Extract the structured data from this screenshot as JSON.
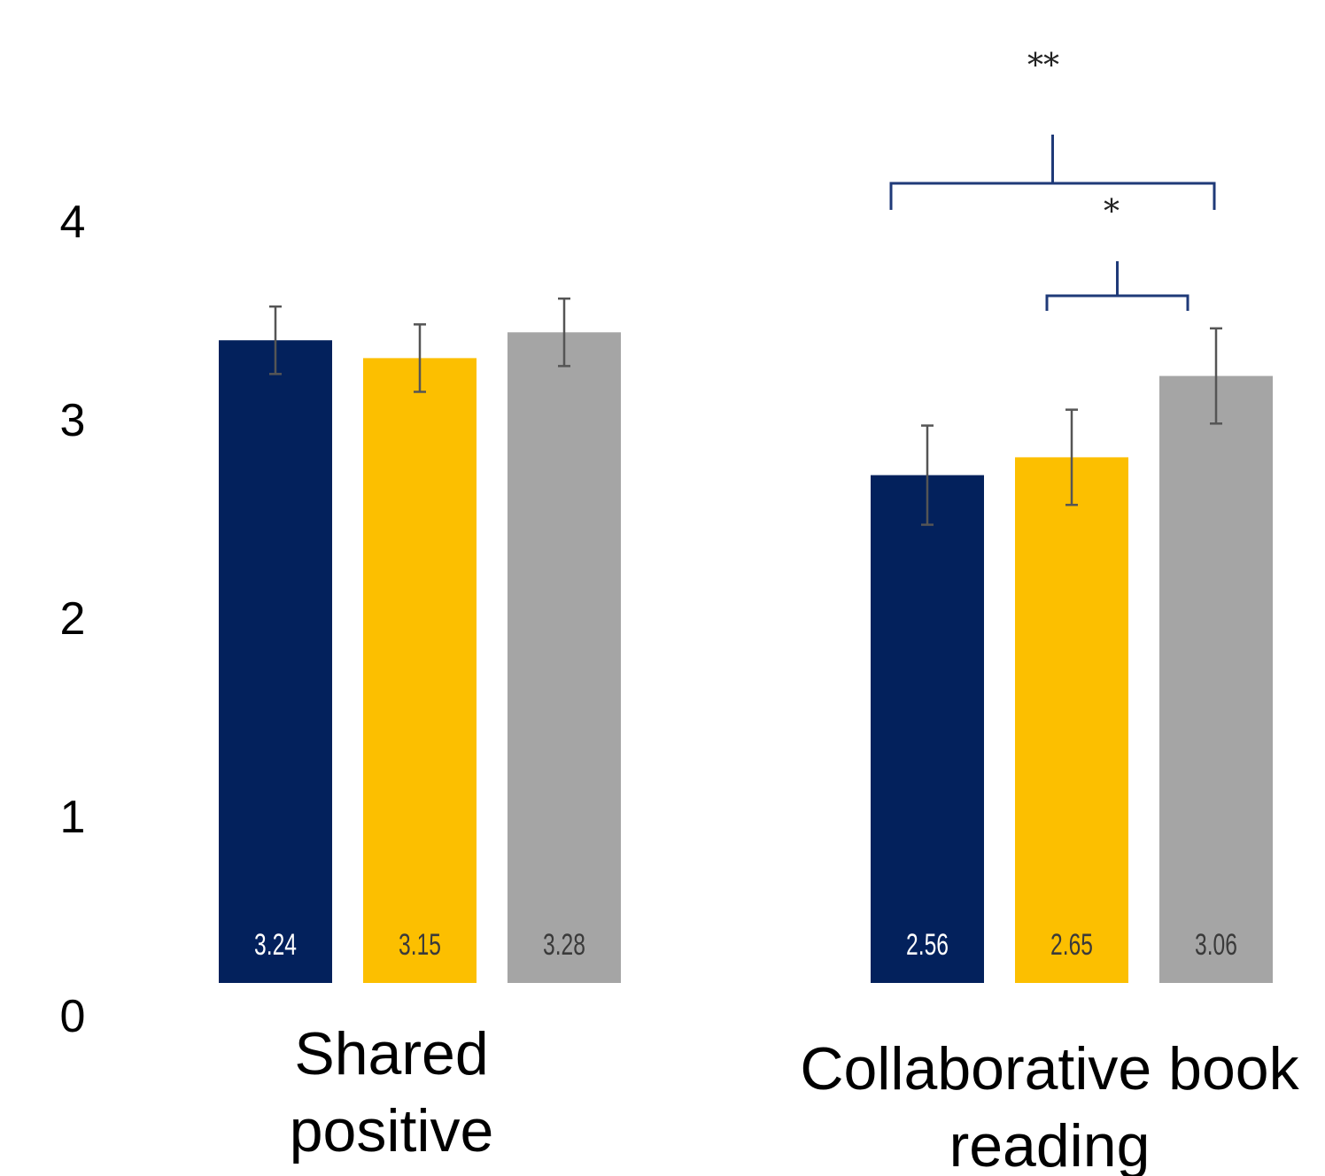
{
  "chart_data": {
    "type": "bar",
    "categories": [
      [
        "Shared",
        "positive"
      ],
      [
        "Collaborative book",
        "reading"
      ]
    ],
    "series": [
      {
        "values": [
          3.24,
          2.56
        ],
        "value_labels": [
          "3.24",
          "2.56"
        ],
        "error": [
          0.17,
          0.25
        ],
        "color": "#03215c",
        "label_color": "#ffffff"
      },
      {
        "values": [
          3.15,
          2.65
        ],
        "value_labels": [
          "3.15",
          "2.65"
        ],
        "error": [
          0.17,
          0.24
        ],
        "color": "#fcbf00",
        "label_color": "#3a3a3a"
      },
      {
        "values": [
          3.28,
          3.06
        ],
        "value_labels": [
          "3.28",
          "3.06"
        ],
        "error": [
          0.17,
          0.24
        ],
        "color": "#a5a5a5",
        "label_color": "#3a3a3a"
      }
    ],
    "yticks": [
      "0",
      "1",
      "2",
      "3",
      "4"
    ],
    "ylim": [
      0,
      4
    ],
    "significance": [
      {
        "category": 1,
        "from_series": 0,
        "to_series": 2,
        "label": "**"
      },
      {
        "category": 1,
        "from_series": 1,
        "to_series": 2,
        "label": "*"
      }
    ],
    "colors": {
      "bracket": "#1f3a78",
      "error_bar": "#555555"
    },
    "title": "",
    "xlabel": "",
    "ylabel": "",
    "grid": false,
    "legend": "none"
  }
}
